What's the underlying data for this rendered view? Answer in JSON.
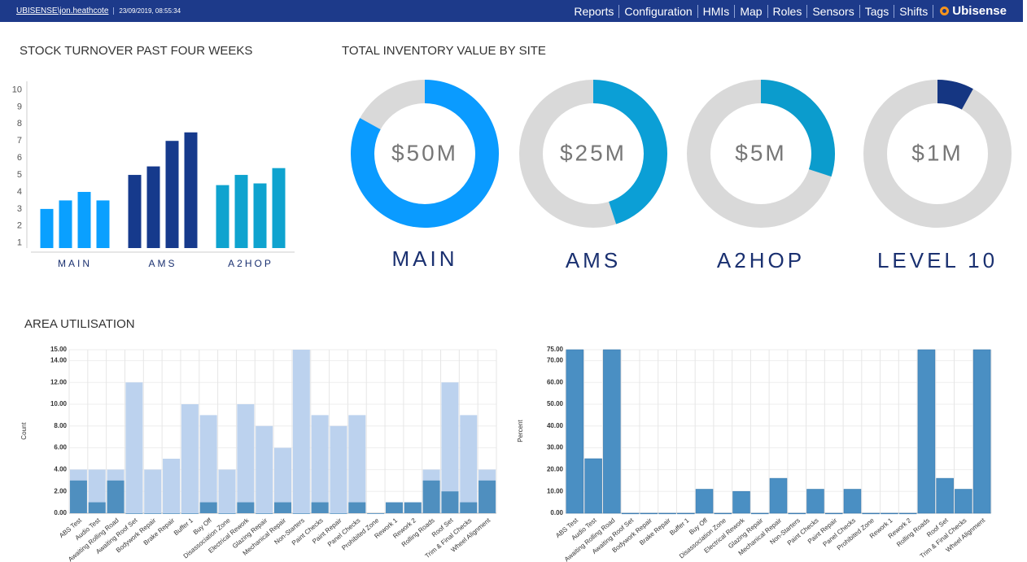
{
  "header": {
    "user": "UBISENSE\\jon.heathcote",
    "timestamp": "23/09/2019, 08:55:34",
    "nav": [
      "Reports",
      "Configuration",
      "HMIs",
      "Map",
      "Roles",
      "Sensors",
      "Tags",
      "Shifts"
    ],
    "brand": "Ubisense"
  },
  "chart_data": [
    {
      "type": "grouped_bar",
      "title": "STOCK TURNOVER PAST FOUR WEEKS",
      "categories": [
        "MAIN",
        "AMS",
        "A2HOP"
      ],
      "colors": [
        "#0aa0ff",
        "#163a8c",
        "#0fa3cf"
      ],
      "values": [
        [
          3.0,
          3.5,
          4.0,
          3.5
        ],
        [
          5.0,
          5.5,
          7.0,
          7.5
        ],
        [
          4.4,
          5.0,
          4.5,
          5.4
        ]
      ],
      "ylim": [
        0.7,
        10.5
      ],
      "yticks": [
        1,
        2,
        3,
        4,
        5,
        6,
        7,
        8,
        9,
        10
      ]
    },
    {
      "type": "donut",
      "title": "TOTAL INVENTORY VALUE BY SITE",
      "categories": [
        "MAIN",
        "AMS",
        "A2HOP",
        "LEVEL 10"
      ],
      "values": [
        83,
        45,
        30,
        8
      ],
      "center_labels": [
        "$50M",
        "$25M",
        "$5M",
        "$1M"
      ],
      "colors": [
        "#0a9bff",
        "#0b9fd6",
        "#0b9ccd",
        "#153682"
      ],
      "track_color": "#d9d9d9"
    },
    {
      "type": "bar",
      "title": "AREA UTILISATION",
      "y_label": "Count",
      "categories": [
        "ABS Test",
        "Audio Test",
        "Awaiting Rolling Road",
        "Awaiting Roof Set",
        "Bodywork Repair",
        "Brake Repair",
        "Buffer 1",
        "Buy Off",
        "Disassociation Zone",
        "Electrical Rework",
        "Glazing Repair",
        "Mechanical Repair",
        "Non-Starters",
        "Paint Checks",
        "Paint Repair",
        "Panel Checks",
        "Prohibited Zone",
        "Rework 1",
        "Rework 2",
        "Rolling Roads",
        "Roof Set",
        "Trim & Final Checks",
        "Wheel Alignment"
      ],
      "series": [
        {
          "color": "#bcd2ee",
          "values": [
            4,
            4,
            4,
            12,
            4,
            5,
            10,
            9,
            4,
            10,
            8,
            6,
            15,
            9,
            8,
            9,
            0,
            1,
            1,
            4,
            12,
            9,
            4
          ]
        },
        {
          "color": "#4f8fbf",
          "values": [
            3,
            1,
            3,
            0,
            0,
            0,
            0,
            1,
            0,
            1,
            0,
            1,
            0,
            1,
            0,
            1,
            0,
            1,
            1,
            3,
            2,
            1,
            3
          ]
        }
      ],
      "ylim": [
        0,
        15
      ],
      "yticks": [
        {
          "value": 0,
          "label": "0.00"
        },
        {
          "value": 2,
          "label": "2.00"
        },
        {
          "value": 4,
          "label": "4.00"
        },
        {
          "value": 6,
          "label": "6.00"
        },
        {
          "value": 8,
          "label": "8.00"
        },
        {
          "value": 10,
          "label": "10.00"
        },
        {
          "value": 12,
          "label": "12.00"
        },
        {
          "value": 14,
          "label": "14.00"
        },
        {
          "value": 15,
          "label": "15.00"
        }
      ],
      "grid": true
    },
    {
      "type": "bar",
      "y_label": "Percent",
      "categories": [
        "ABS Test",
        "Audio Test",
        "Awaiting Rolling Road",
        "Awaiting Roof Set",
        "Bodywork Repair",
        "Brake Repair",
        "Buffer 1",
        "Buy Off",
        "Disassociation Zone",
        "Electrical Rework",
        "Glazing Repair",
        "Mechanical Repair",
        "Non-Starters",
        "Paint Checks",
        "Paint Repair",
        "Panel Checks",
        "Prohibited Zone",
        "Rework 1",
        "Rework 2",
        "Rolling Roads",
        "Roof Set",
        "Trim & Final Checks",
        "Wheel Alignment"
      ],
      "series": [
        {
          "color": "#4a8fc3",
          "values": [
            75,
            25,
            75,
            0,
            0,
            0,
            0,
            11,
            0,
            10,
            0,
            16,
            0,
            11,
            0,
            11,
            0,
            0,
            0,
            75,
            16,
            11,
            75
          ]
        }
      ],
      "ylim": [
        0,
        75
      ],
      "yticks": [
        {
          "value": 0,
          "label": "0.00"
        },
        {
          "value": 10,
          "label": "10.00"
        },
        {
          "value": 20,
          "label": "20.00"
        },
        {
          "value": 30,
          "label": "30.00"
        },
        {
          "value": 40,
          "label": "40.00"
        },
        {
          "value": 50,
          "label": "50.00"
        },
        {
          "value": 60,
          "label": "60.00"
        },
        {
          "value": 70,
          "label": "70.00"
        },
        {
          "value": 75,
          "label": "75.00"
        }
      ],
      "grid": true
    }
  ]
}
